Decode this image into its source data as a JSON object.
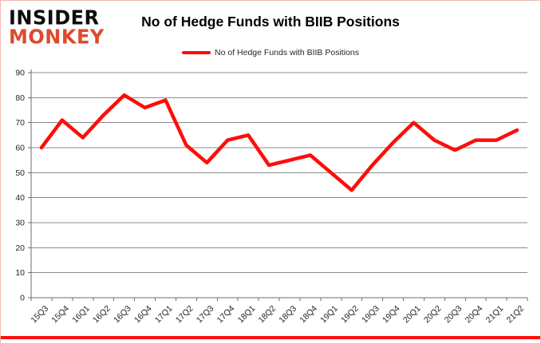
{
  "header": {
    "logo_line1": "INSIDER",
    "logo_line2": "MONKEY",
    "title": "No of Hedge Funds with BIIB Positions"
  },
  "legend": {
    "label": "No of Hedge Funds with BIIB Positions"
  },
  "colors": {
    "line": "#fe0d0b",
    "gridline": "#8c8c8c",
    "axis": "#6e6e6e",
    "tick_label": "#262626",
    "bottom_bar": "#fb0f0c",
    "logo_accent": "#dd4a2e"
  },
  "chart_data": {
    "type": "line",
    "title": "No of Hedge Funds with BIIB Positions",
    "categories": [
      "15Q3",
      "15Q4",
      "16Q1",
      "16Q2",
      "16Q3",
      "16Q4",
      "17Q1",
      "17Q2",
      "17Q3",
      "17Q4",
      "18Q1",
      "18Q2",
      "18Q3",
      "18Q4",
      "19Q1",
      "19Q2",
      "19Q3",
      "19Q4",
      "20Q1",
      "20Q2",
      "20Q3",
      "20Q4",
      "21Q1",
      "21Q2"
    ],
    "series": [
      {
        "name": "No of Hedge Funds with BIIB Positions",
        "values": [
          60,
          71,
          64,
          73,
          81,
          76,
          79,
          61,
          54,
          63,
          65,
          53,
          55,
          57,
          50,
          43,
          53,
          62,
          70,
          63,
          59,
          63,
          63,
          67
        ]
      }
    ],
    "xlabel": "",
    "ylabel": "",
    "ylim": [
      0,
      90
    ],
    "ytick_step": 10,
    "grid": true,
    "legend_position": "top"
  }
}
